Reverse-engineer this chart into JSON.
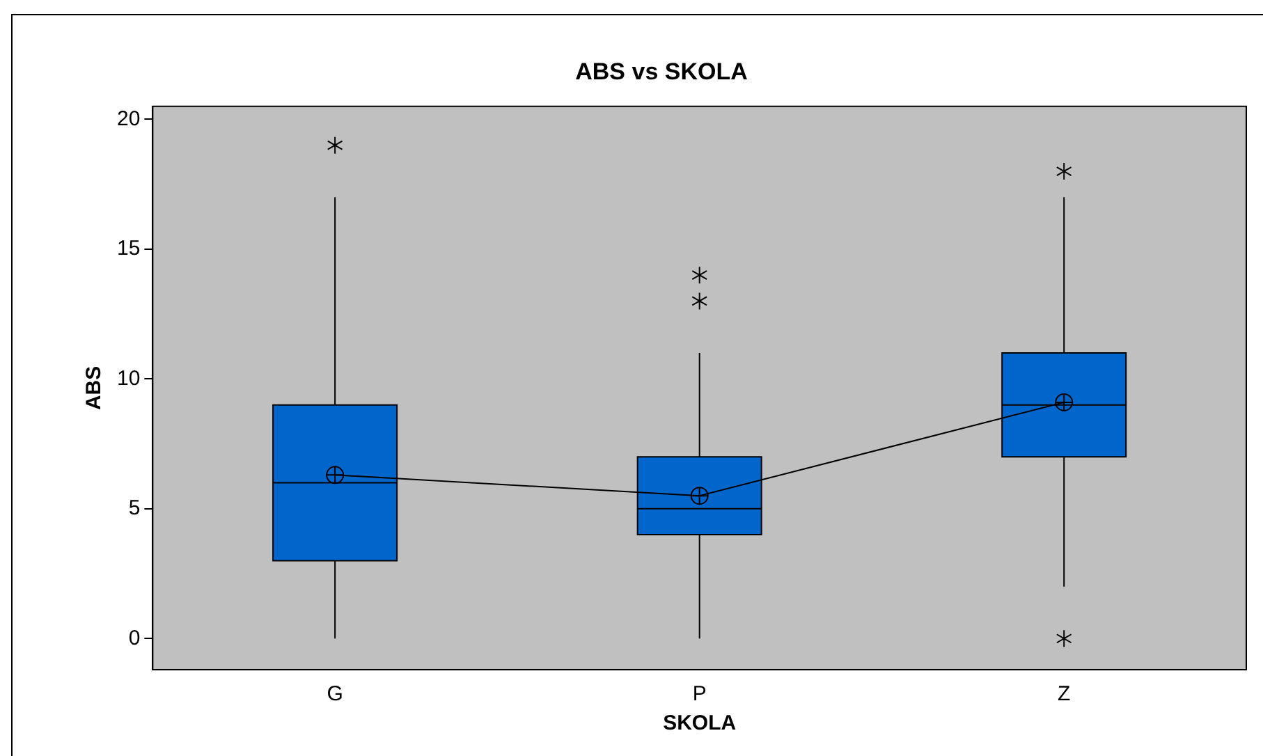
{
  "chart_data": {
    "type": "box",
    "title": "ABS vs SKOLA",
    "xlabel": "SKOLA",
    "ylabel": "ABS",
    "categories": [
      "G",
      "P",
      "Z"
    ],
    "ylim": [
      -1.2,
      20.5
    ],
    "yticks": [
      0,
      5,
      10,
      15,
      20
    ],
    "grid": false,
    "legend": false,
    "series": [
      {
        "color": "#0066cc",
        "boxes": [
          {
            "low": 0,
            "q1": 3,
            "median": 6,
            "q3": 9,
            "high": 17,
            "mean": 6.3,
            "outliers": [
              19
            ]
          },
          {
            "low": 0,
            "q1": 4,
            "median": 5,
            "q3": 7,
            "high": 11,
            "mean": 5.5,
            "outliers": [
              13,
              14
            ]
          },
          {
            "low": 2,
            "q1": 7,
            "median": 9,
            "q3": 11,
            "high": 17,
            "mean": 9.1,
            "outliers": [
              0,
              18
            ]
          }
        ]
      },
      {
        "type": "line",
        "color": "#000000",
        "values": [
          6.3,
          5.5,
          9.1
        ]
      }
    ]
  }
}
